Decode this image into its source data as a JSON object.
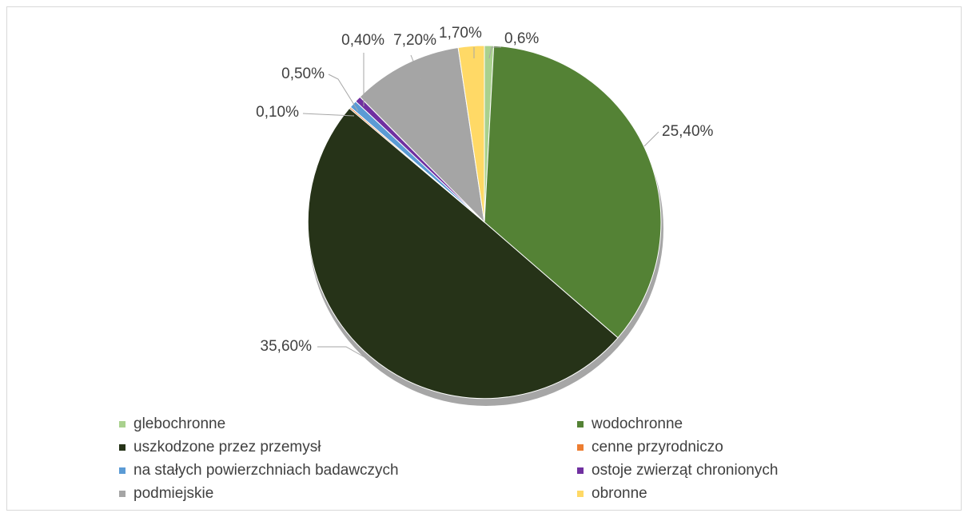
{
  "chart_data": {
    "type": "pie",
    "title": "",
    "categories": [
      "glebochronne",
      "wodochronne",
      "uszkodzone przez przemysł",
      "cenne przyrodniczo",
      "na stałych powierzchniach badawczych",
      "ostoje zwierząt chronionych",
      "podmiejskie",
      "obronne"
    ],
    "values": [
      0.6,
      25.4,
      35.6,
      0.1,
      0.5,
      0.4,
      7.2,
      1.7
    ],
    "data_labels": [
      "0,6%",
      "25,40%",
      "35,60%",
      "0,10%",
      "0,50%",
      "0,40%",
      "7,20%",
      "1,70%"
    ],
    "colors": [
      "#a9d18e",
      "#548235",
      "#263318",
      "#ed7d31",
      "#5b9bd5",
      "#7030a0",
      "#a5a5a5",
      "#ffd966"
    ],
    "legend_position": "bottom"
  }
}
